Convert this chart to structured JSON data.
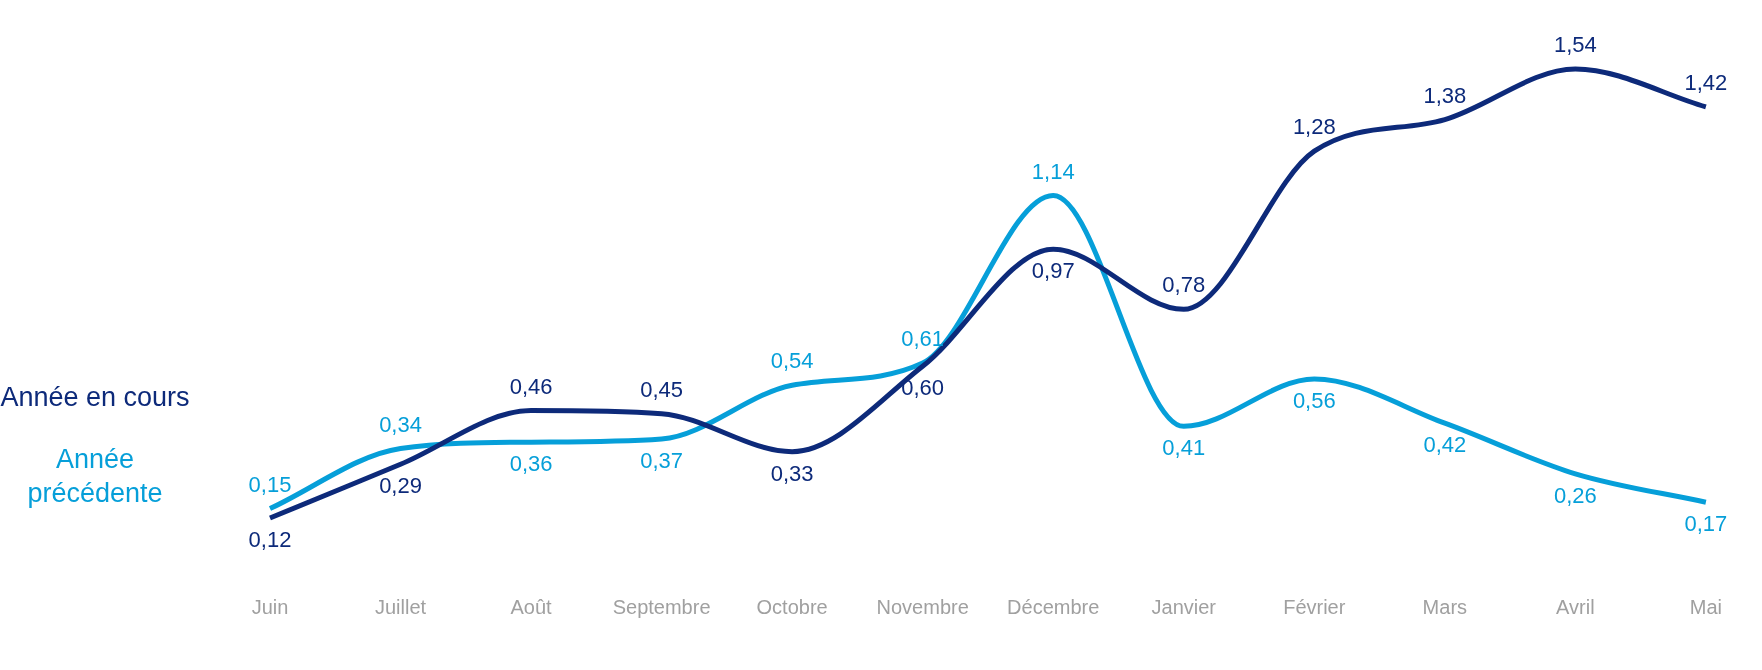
{
  "chart_data": {
    "type": "line",
    "categories": [
      "Juin",
      "Juillet",
      "Août",
      "Septembre",
      "Octobre",
      "Novembre",
      "Décembre",
      "Janvier",
      "Février",
      "Mars",
      "Avril",
      "Mai"
    ],
    "series": [
      {
        "name": "Année en cours",
        "color": "#0d2a7a",
        "values": [
          0.12,
          0.29,
          0.46,
          0.45,
          0.33,
          0.6,
          0.97,
          0.78,
          1.28,
          1.38,
          1.54,
          1.42
        ],
        "value_labels": [
          "0,12",
          "0,29",
          "0,46",
          "0,45",
          "0,33",
          "0,60",
          "0,97",
          "0,78",
          "1,28",
          "1,38",
          "1,54",
          "1,42"
        ]
      },
      {
        "name": "Année précédente",
        "color": "#069fd9",
        "values": [
          0.15,
          0.34,
          0.36,
          0.37,
          0.54,
          0.61,
          1.14,
          0.41,
          0.56,
          0.42,
          0.26,
          0.17
        ],
        "value_labels": [
          "0,15",
          "0,34",
          "0,36",
          "0,37",
          "0,54",
          "0,61",
          "1,14",
          "0,41",
          "0,56",
          "0,42",
          "0,26",
          "0,17"
        ]
      }
    ],
    "legend": "left",
    "marker": "none",
    "line_style": "solid"
  }
}
